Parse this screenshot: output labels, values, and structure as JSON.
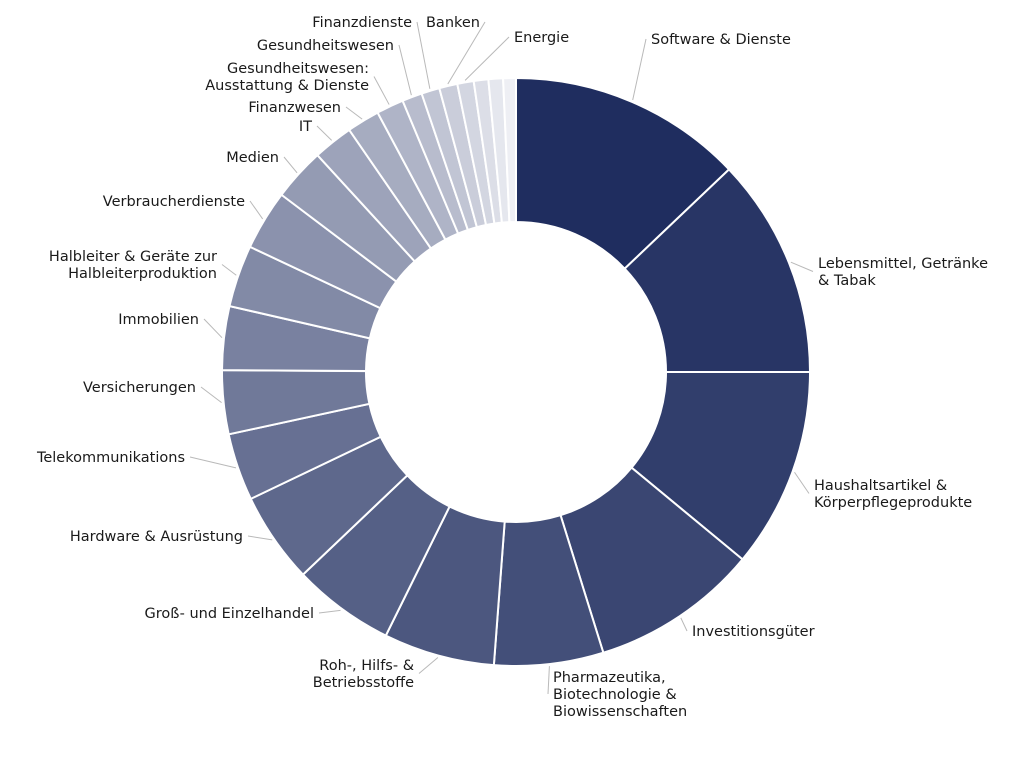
{
  "chart_data": {
    "type": "pie",
    "donut": true,
    "title": "",
    "legend": "none",
    "color_start": "#1f2d5f",
    "color_end": "#eeeff4",
    "slices": [
      {
        "label": "Software & Dienste",
        "lines": [
          "Software & Dienste"
        ],
        "value": 12.9
      },
      {
        "label": "Lebensmittel, Getränke & Tabak",
        "lines": [
          "Lebensmittel, Getränke",
          "& Tabak"
        ],
        "value": 12.1
      },
      {
        "label": "Haushaltsartikel & Körperpflegeprodukte",
        "lines": [
          "Haushaltsartikel &",
          "Körperpflegeprodukte"
        ],
        "value": 11.0
      },
      {
        "label": "Investitionsgüter",
        "lines": [
          "Investitionsgüter"
        ],
        "value": 9.2
      },
      {
        "label": "Pharmazeutika, Biotechnologie & Biowissenschaften",
        "lines": [
          "Pharmazeutika,",
          "Biotechnologie &",
          "Biowissenschaften"
        ],
        "value": 6.0
      },
      {
        "label": "Roh-, Hilfs- & Betriebsstoffe",
        "lines": [
          "Roh-, Hilfs- &",
          "Betriebsstoffe"
        ],
        "value": 6.1
      },
      {
        "label": "Groß- und Einzelhandel",
        "lines": [
          "Groß- und Einzelhandel"
        ],
        "value": 5.6
      },
      {
        "label": "Hardware & Ausrüstung",
        "lines": [
          "Hardware & Ausrüstung"
        ],
        "value": 5.0
      },
      {
        "label": "Telekommunikations",
        "lines": [
          "Telekommunikations"
        ],
        "value": 3.7
      },
      {
        "label": "Versicherungen",
        "lines": [
          "Versicherungen"
        ],
        "value": 3.5
      },
      {
        "label": "Immobilien",
        "lines": [
          "Immobilien"
        ],
        "value": 3.5
      },
      {
        "label": "Halbleiter & Geräte zur Halbleiterproduktion",
        "lines": [
          "Halbleiter & Geräte zur",
          "Halbleiterproduktion"
        ],
        "value": 3.4
      },
      {
        "label": "Verbraucherdienste",
        "lines": [
          "Verbraucherdienste"
        ],
        "value": 3.3
      },
      {
        "label": "Medien",
        "lines": [
          "Medien"
        ],
        "value": 2.9
      },
      {
        "label": "IT",
        "lines": [
          "IT"
        ],
        "value": 2.2
      },
      {
        "label": "Finanzwesen",
        "lines": [
          "Finanzwesen"
        ],
        "value": 1.8
      },
      {
        "label": "Gesundheitswesen: Ausstattung & Dienste",
        "lines": [
          "Gesundheitswesen:",
          "Ausstattung & Dienste"
        ],
        "value": 1.5
      },
      {
        "label": "Gesundheitswesen",
        "lines": [
          "Gesundheitswesen"
        ],
        "value": 1.1
      },
      {
        "label": "Finanzdienste",
        "lines": [
          "Finanzdienste"
        ],
        "value": 1.0
      },
      {
        "label": "Banken",
        "lines": [
          "Banken"
        ],
        "value": 1.0
      },
      {
        "label": "Energie",
        "lines": [
          "Energie"
        ],
        "value": 0.9
      },
      {
        "label": "",
        "lines": [],
        "value": 0.8
      },
      {
        "label": "",
        "lines": [],
        "value": 0.8
      },
      {
        "label": "",
        "lines": [],
        "value": 0.7
      }
    ]
  }
}
